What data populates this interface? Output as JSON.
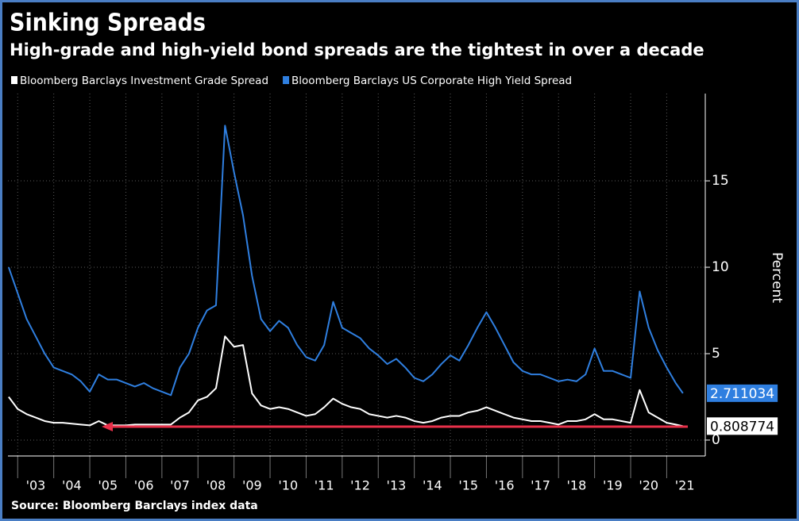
{
  "chart_data": {
    "type": "line",
    "title": "Sinking Spreads",
    "subtitle": "High-grade and high-yield bond spreads are the tightest in over a decade",
    "source": "Source: Bloomberg Barclays index data",
    "y_label": "Percent",
    "y_axis_side": "right",
    "grid": true,
    "xlim": [
      2002.73,
      2022.07
    ],
    "ylim": [
      -0.92,
      20.05
    ],
    "yticks": [
      0,
      5,
      10,
      15
    ],
    "xticks": [
      {
        "value": 2003,
        "label": "'03"
      },
      {
        "value": 2004,
        "label": "'04"
      },
      {
        "value": 2005,
        "label": "'05"
      },
      {
        "value": 2006,
        "label": "'06"
      },
      {
        "value": 2007,
        "label": "'07"
      },
      {
        "value": 2008,
        "label": "'08"
      },
      {
        "value": 2009,
        "label": "'09"
      },
      {
        "value": 2010,
        "label": "'10"
      },
      {
        "value": 2011,
        "label": "'11"
      },
      {
        "value": 2012,
        "label": "'12"
      },
      {
        "value": 2013,
        "label": "'13"
      },
      {
        "value": 2014,
        "label": "'14"
      },
      {
        "value": 2015,
        "label": "'15"
      },
      {
        "value": 2016,
        "label": "'16"
      },
      {
        "value": 2017,
        "label": "'17"
      },
      {
        "value": 2018,
        "label": "'18"
      },
      {
        "value": 2019,
        "label": "'19"
      },
      {
        "value": 2020,
        "label": "'20"
      },
      {
        "value": 2021,
        "label": "'21"
      }
    ],
    "x": [
      2002.75,
      2003.0,
      2003.25,
      2003.5,
      2003.75,
      2004.0,
      2004.25,
      2004.5,
      2004.75,
      2005.0,
      2005.25,
      2005.5,
      2005.75,
      2006.0,
      2006.25,
      2006.5,
      2006.75,
      2007.0,
      2007.25,
      2007.5,
      2007.75,
      2008.0,
      2008.25,
      2008.5,
      2008.75,
      2009.0,
      2009.25,
      2009.5,
      2009.75,
      2010.0,
      2010.25,
      2010.5,
      2010.75,
      2011.0,
      2011.25,
      2011.5,
      2011.75,
      2012.0,
      2012.25,
      2012.5,
      2012.75,
      2013.0,
      2013.25,
      2013.5,
      2013.75,
      2014.0,
      2014.25,
      2014.5,
      2014.75,
      2015.0,
      2015.25,
      2015.5,
      2015.75,
      2016.0,
      2016.25,
      2016.5,
      2016.75,
      2017.0,
      2017.25,
      2017.5,
      2017.75,
      2018.0,
      2018.25,
      2018.5,
      2018.75,
      2019.0,
      2019.25,
      2019.5,
      2019.75,
      2020.0,
      2020.25,
      2020.5,
      2020.75,
      2021.0,
      2021.25,
      2021.45
    ],
    "series": [
      {
        "name": "Bloomberg Barclays Investment Grade Spread",
        "color": "#ffffff",
        "label_text_color": "#000000",
        "values": [
          2.5,
          1.8,
          1.5,
          1.3,
          1.1,
          1.0,
          1.0,
          0.95,
          0.9,
          0.85,
          1.1,
          0.85,
          0.85,
          0.85,
          0.9,
          0.9,
          0.9,
          0.9,
          0.9,
          1.3,
          1.6,
          2.3,
          2.5,
          3.0,
          6.0,
          5.4,
          5.5,
          2.7,
          2.0,
          1.8,
          1.9,
          1.8,
          1.6,
          1.4,
          1.5,
          1.9,
          2.4,
          2.1,
          1.9,
          1.8,
          1.5,
          1.4,
          1.3,
          1.4,
          1.3,
          1.1,
          1.0,
          1.1,
          1.3,
          1.4,
          1.4,
          1.6,
          1.7,
          1.9,
          1.7,
          1.5,
          1.3,
          1.2,
          1.1,
          1.1,
          1.0,
          0.9,
          1.1,
          1.1,
          1.2,
          1.5,
          1.2,
          1.2,
          1.1,
          1.0,
          2.9,
          1.6,
          1.3,
          1.0,
          0.9,
          0.808774
        ]
      },
      {
        "name": "Bloomberg Barclays US Corporate High Yield Spread",
        "color": "#2f7fe0",
        "label_text_color": "#ffffff",
        "values": [
          10,
          8.5,
          7.0,
          6.0,
          5.0,
          4.2,
          4.0,
          3.8,
          3.4,
          2.8,
          3.8,
          3.5,
          3.5,
          3.3,
          3.1,
          3.3,
          3.0,
          2.8,
          2.6,
          4.2,
          5.0,
          6.5,
          7.5,
          7.8,
          18.2,
          15.5,
          13.0,
          9.5,
          7.0,
          6.3,
          6.9,
          6.5,
          5.5,
          4.8,
          4.6,
          5.5,
          8.0,
          6.5,
          6.2,
          5.9,
          5.3,
          4.9,
          4.4,
          4.7,
          4.2,
          3.6,
          3.4,
          3.8,
          4.4,
          4.9,
          4.6,
          5.5,
          6.5,
          7.4,
          6.5,
          5.5,
          4.5,
          4.0,
          3.8,
          3.8,
          3.6,
          3.4,
          3.5,
          3.4,
          3.8,
          5.3,
          4.0,
          4.0,
          3.8,
          3.6,
          8.6,
          6.5,
          5.2,
          4.2,
          3.3,
          2.711034
        ]
      }
    ]
  }
}
